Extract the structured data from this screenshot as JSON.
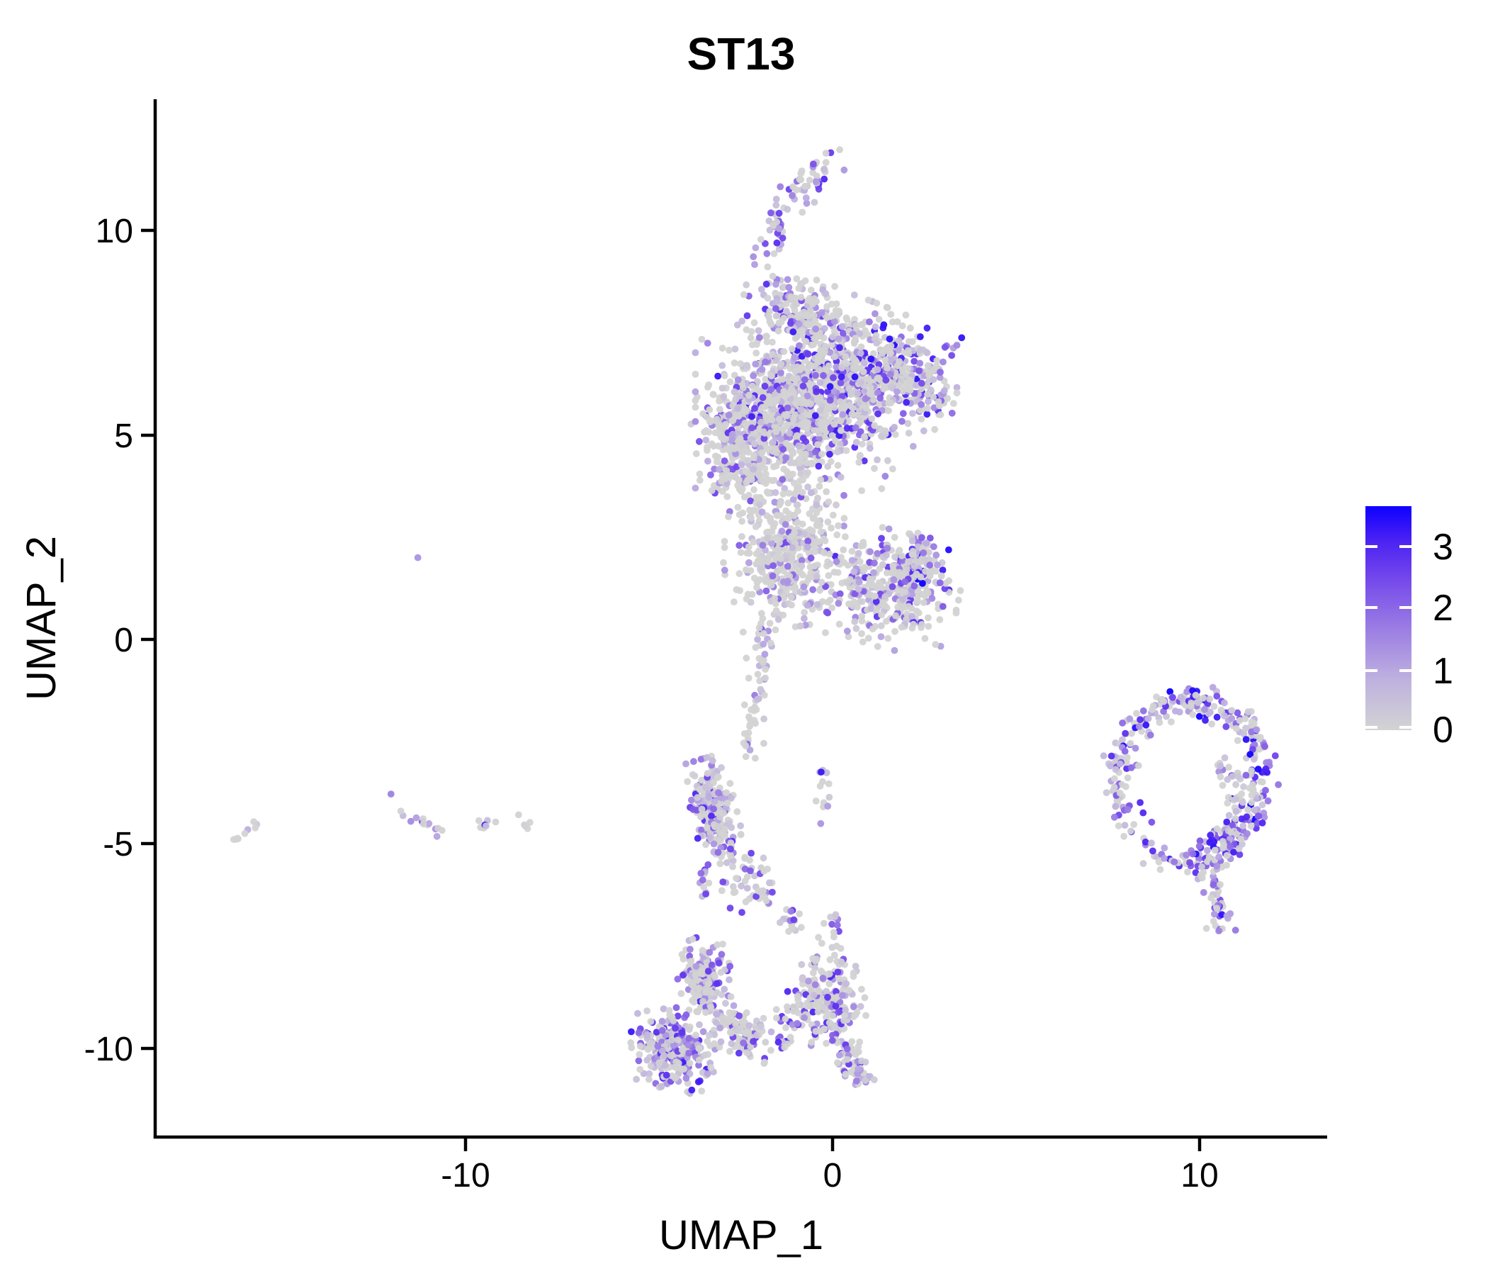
{
  "title": {
    "text": "ST13"
  },
  "axes": {
    "x_label": "UMAP_1",
    "y_label": "UMAP_2",
    "x_ticks": [
      -10,
      0,
      10
    ],
    "y_ticks": [
      10,
      5,
      0,
      -5,
      -10
    ]
  },
  "legend": {
    "ticks": [
      3,
      2,
      1,
      0
    ],
    "low_color": "#D3D3D3",
    "high_color": "#0D00FF"
  },
  "chart_data": {
    "type": "scatter",
    "title": "ST13",
    "xlabel": "UMAP_1",
    "ylabel": "UMAP_2",
    "xlim": [
      -18.4,
      13.5
    ],
    "ylim": [
      -12.2,
      13.2
    ],
    "x_ticks": [
      -10,
      0,
      10
    ],
    "y_ticks": [
      10,
      5,
      0,
      -5,
      -10
    ],
    "grid": false,
    "legend_position": "right",
    "n_points_estimate": 4700,
    "point_radius_px": 4.9,
    "seed": 42,
    "color_scale": {
      "low_label": 0,
      "high_label": 3,
      "domain": [
        0,
        3.65
      ],
      "legend_ticks": [
        3,
        2,
        1,
        0
      ],
      "stops": [
        {
          "t": 0.0,
          "c": "#D3D3D3"
        },
        {
          "t": 0.22,
          "c": "#BFB2DF"
        },
        {
          "t": 0.45,
          "c": "#9C7EE3"
        },
        {
          "t": 0.68,
          "c": "#7347EB"
        },
        {
          "t": 0.85,
          "c": "#4A21F3"
        },
        {
          "t": 1.0,
          "c": "#0D00FF"
        }
      ]
    },
    "clusters": [
      {
        "name": "top-tail",
        "kind": "chain",
        "pts": [
          [
            0.15,
            11.75
          ],
          [
            -0.35,
            11.5
          ],
          [
            -0.95,
            10.95
          ],
          [
            -1.45,
            10.35
          ],
          [
            -1.7,
            9.75
          ],
          [
            -1.68,
            9.15
          ]
        ],
        "w": 0.2,
        "n": 80,
        "p0": 0.35,
        "k": 1.6,
        "scale": 0.85
      },
      {
        "name": "tail-fan",
        "kind": "blob",
        "cx": -0.9,
        "cy": 8.05,
        "rx": 1.25,
        "ry": 0.7,
        "rot": -15,
        "n": 150,
        "p0": 0.42,
        "k": 1.8,
        "scale": 0.85
      },
      {
        "name": "main-core",
        "kind": "blob",
        "cx": -1.05,
        "cy": 5.6,
        "rx": 2.15,
        "ry": 1.85,
        "rot": 0,
        "n": 950,
        "p0": 0.46,
        "k": 1.9,
        "scale": 0.9
      },
      {
        "name": "main-left",
        "kind": "blob",
        "cx": -2.55,
        "cy": 4.7,
        "rx": 0.95,
        "ry": 1.3,
        "rot": 10,
        "n": 220,
        "p0": 0.5,
        "k": 2.0,
        "scale": 0.8
      },
      {
        "name": "main-right",
        "kind": "blob",
        "cx": 0.9,
        "cy": 6.4,
        "rx": 1.7,
        "ry": 1.45,
        "rot": -20,
        "n": 420,
        "p0": 0.42,
        "k": 1.7,
        "scale": 0.95
      },
      {
        "name": "main-right-edge",
        "kind": "blob",
        "cx": 2.45,
        "cy": 6.3,
        "rx": 0.75,
        "ry": 1.05,
        "rot": 0,
        "n": 110,
        "p0": 0.4,
        "k": 1.6,
        "scale": 0.95
      },
      {
        "name": "waist",
        "kind": "blob",
        "cx": -1.3,
        "cy": 2.1,
        "rx": 1.35,
        "ry": 1.45,
        "rot": 8,
        "n": 400,
        "p0": 0.58,
        "k": 2.2,
        "scale": 0.7
      },
      {
        "name": "right-lobe",
        "kind": "blob",
        "cx": 1.45,
        "cy": 1.25,
        "rx": 1.6,
        "ry": 1.15,
        "rot": -12,
        "n": 330,
        "p0": 0.5,
        "k": 1.9,
        "scale": 0.85
      },
      {
        "name": "lobe-right-dense",
        "kind": "blob",
        "cx": 2.35,
        "cy": 1.85,
        "rx": 0.65,
        "ry": 0.6,
        "rot": 0,
        "n": 90,
        "p0": 0.3,
        "k": 1.4,
        "scale": 1.0
      },
      {
        "name": "neck-strip",
        "kind": "chain",
        "pts": [
          [
            -1.75,
            0.55
          ],
          [
            -1.95,
            -0.35
          ],
          [
            -2.1,
            -1.25
          ],
          [
            -2.15,
            -2.2
          ],
          [
            -2.3,
            -2.95
          ]
        ],
        "w": 0.15,
        "n": 60,
        "p0": 0.78,
        "k": 2.0,
        "scale": 0.6
      },
      {
        "name": "strip-blob",
        "kind": "blob",
        "cx": -3.25,
        "cy": -4.2,
        "rx": 0.5,
        "ry": 1.05,
        "rot": 15,
        "n": 240,
        "p0": 0.32,
        "k": 1.6,
        "scale": 0.85
      },
      {
        "name": "strip-tail",
        "kind": "chain",
        "pts": [
          [
            -3.5,
            -5.5
          ],
          [
            -3.55,
            -6.3
          ]
        ],
        "w": 0.1,
        "n": 12,
        "p0": 0.5,
        "k": 1.8,
        "scale": 0.8
      },
      {
        "name": "connector-scatter",
        "kind": "blob",
        "cx": -2.35,
        "cy": -5.9,
        "rx": 0.7,
        "ry": 0.75,
        "rot": 0,
        "n": 38,
        "p0": 0.5,
        "k": 1.8,
        "scale": 0.8
      },
      {
        "name": "connector-chain",
        "kind": "chain",
        "pts": [
          [
            -2.0,
            -6.1
          ],
          [
            -1.35,
            -6.6
          ],
          [
            -1.05,
            -7.1
          ]
        ],
        "w": 0.14,
        "n": 24,
        "p0": 0.45,
        "k": 1.7,
        "scale": 0.85
      },
      {
        "name": "mid-specks",
        "kind": "chain",
        "pts": [
          [
            -0.2,
            -3.05
          ],
          [
            -0.25,
            -4.3
          ]
        ],
        "w": 0.12,
        "n": 13,
        "p0": 0.35,
        "k": 1.5,
        "scale": 0.9
      },
      {
        "name": "bottom-left-dense",
        "kind": "blob",
        "cx": -4.35,
        "cy": -10.0,
        "rx": 0.95,
        "ry": 0.8,
        "rot": -10,
        "n": 300,
        "p0": 0.35,
        "k": 1.5,
        "scale": 0.9
      },
      {
        "name": "bottom-peak",
        "kind": "blob",
        "cx": -3.5,
        "cy": -8.25,
        "rx": 0.6,
        "ry": 0.78,
        "rot": 20,
        "n": 170,
        "p0": 0.4,
        "k": 1.7,
        "scale": 0.85
      },
      {
        "name": "bottom-mid",
        "kind": "blob",
        "cx": -2.55,
        "cy": -9.55,
        "rx": 0.8,
        "ry": 0.5,
        "rot": -30,
        "n": 110,
        "p0": 0.55,
        "k": 2.0,
        "scale": 0.8
      },
      {
        "name": "bottom-chain",
        "kind": "chain",
        "pts": [
          [
            -1.65,
            -9.9
          ],
          [
            -1.1,
            -9.2
          ],
          [
            -0.6,
            -8.4
          ],
          [
            -0.12,
            -7.6
          ],
          [
            0.1,
            -7.25
          ]
        ],
        "w": 0.28,
        "n": 90,
        "p0": 0.45,
        "k": 1.8,
        "scale": 0.85
      },
      {
        "name": "bottom-right",
        "kind": "blob",
        "cx": 0.0,
        "cy": -8.95,
        "rx": 0.75,
        "ry": 0.8,
        "rot": 0,
        "n": 150,
        "p0": 0.45,
        "k": 1.8,
        "scale": 0.85
      },
      {
        "name": "bottom-tail",
        "kind": "chain",
        "pts": [
          [
            0.2,
            -9.9
          ],
          [
            0.5,
            -10.3
          ],
          [
            0.85,
            -10.75
          ]
        ],
        "w": 0.2,
        "n": 60,
        "p0": 0.35,
        "k": 1.4,
        "scale": 0.9
      },
      {
        "name": "bottom-specks",
        "kind": "chain",
        "pts": [
          [
            0.0,
            -6.85
          ],
          [
            0.18,
            -7.05
          ]
        ],
        "w": 0.08,
        "n": 8,
        "p0": 0.4,
        "k": 1.5,
        "scale": 0.9
      },
      {
        "name": "ring",
        "kind": "ring",
        "cx": 9.75,
        "cy": -3.45,
        "r": 1.95,
        "sd": 0.2,
        "a0": 0,
        "a1": 360,
        "n": 360,
        "p0": 0.25,
        "k": 1.2,
        "scale": 1.0,
        "sparse": [
          195,
          265,
          0.45
        ]
      },
      {
        "name": "ring-inner-arc",
        "kind": "ring",
        "cx": 10.15,
        "cy": -4.0,
        "r": 1.0,
        "sd": 0.16,
        "a0": -80,
        "a1": 70,
        "n": 70,
        "p0": 0.3,
        "k": 1.3,
        "scale": 0.95
      },
      {
        "name": "ring-tail",
        "kind": "chain",
        "pts": [
          [
            10.1,
            -5.4
          ],
          [
            10.35,
            -5.95
          ],
          [
            10.5,
            -6.5
          ],
          [
            10.55,
            -7.1
          ]
        ],
        "w": 0.16,
        "n": 55,
        "p0": 0.3,
        "k": 1.3,
        "scale": 0.95
      },
      {
        "name": "left-streak",
        "kind": "chain",
        "pts": [
          [
            -16.25,
            -4.95
          ],
          [
            -15.75,
            -4.5
          ]
        ],
        "w": 0.06,
        "n": 9,
        "p0": 0.6,
        "k": 1.8,
        "scale": 0.7
      },
      {
        "name": "left-arc",
        "kind": "chain",
        "pts": [
          [
            -11.85,
            -4.05
          ],
          [
            -11.45,
            -4.35
          ],
          [
            -11.0,
            -4.55
          ],
          [
            -10.62,
            -4.72
          ]
        ],
        "w": 0.07,
        "n": 13,
        "p0": 0.5,
        "k": 1.6,
        "scale": 0.85
      },
      {
        "name": "left-row",
        "kind": "chain",
        "pts": [
          [
            -9.85,
            -4.5
          ],
          [
            -8.25,
            -4.48
          ]
        ],
        "w": 0.08,
        "n": 12,
        "p0": 0.55,
        "k": 1.6,
        "scale": 0.95
      },
      {
        "name": "left-lone-high",
        "kind": "point",
        "x": -12.03,
        "y": -3.78,
        "v": 1.6
      },
      {
        "name": "lone-dot",
        "kind": "point",
        "x": -11.3,
        "y": 2.0,
        "v": 1.3
      }
    ]
  }
}
